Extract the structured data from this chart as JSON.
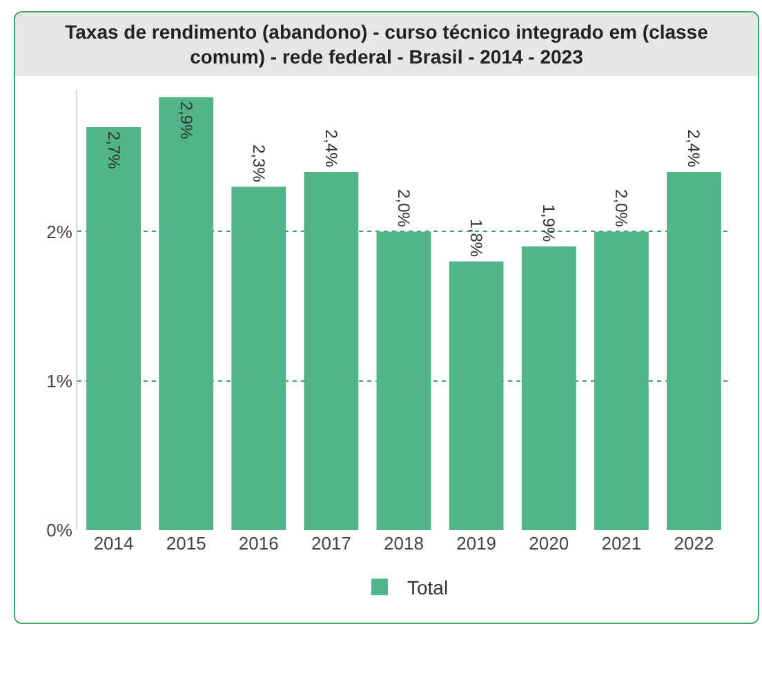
{
  "chart_data": {
    "type": "bar",
    "title": "Taxas de rendimento (abandono) - curso técnico integrado em (classe comum) - rede federal - Brasil - 2014 - 2023",
    "categories": [
      "2014",
      "2015",
      "2016",
      "2017",
      "2018",
      "2019",
      "2020",
      "2021",
      "2022"
    ],
    "series": [
      {
        "name": "Total",
        "color": "#52b58a",
        "values": [
          2.7,
          2.9,
          2.3,
          2.4,
          2.0,
          1.8,
          1.9,
          2.0,
          2.4
        ],
        "value_labels": [
          "2,7%",
          "2,9%",
          "2,3%",
          "2,4%",
          "2,0%",
          "1,8%",
          "1,9%",
          "2,0%",
          "2,4%"
        ]
      }
    ],
    "ylim": [
      0,
      2.95
    ],
    "yticks": [
      {
        "value": 0,
        "label": "0%"
      },
      {
        "value": 1,
        "label": "1%"
      },
      {
        "value": 2,
        "label": "2%"
      }
    ],
    "grid": "y",
    "legend": "bottom"
  }
}
